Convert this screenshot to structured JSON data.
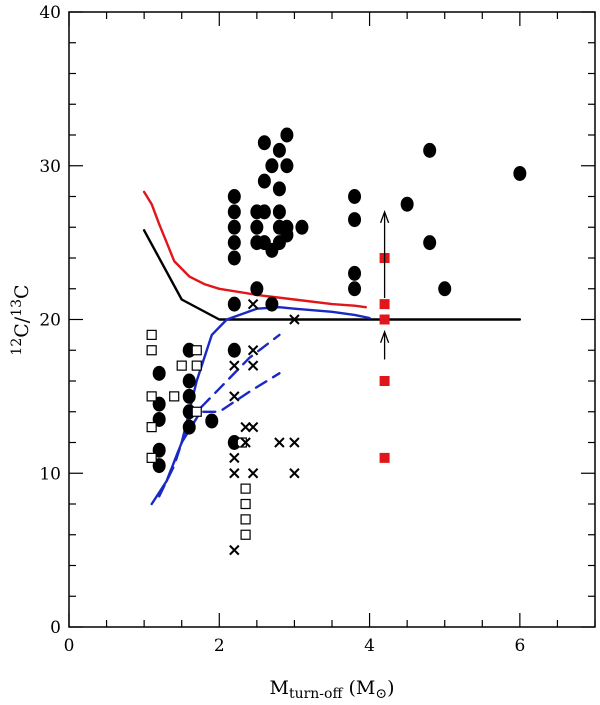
{
  "chart_data": {
    "type": "scatter",
    "title": "",
    "xlabel": {
      "main": "M",
      "sub": "turn-off",
      "unit_open": " (M",
      "unit_sub": "⊙",
      "unit_close": ")"
    },
    "ylabel": {
      "sup1": "12",
      "mid": "C/",
      "sup2": "13",
      "end": "C"
    },
    "xlim": [
      0,
      7
    ],
    "ylim": [
      0,
      40
    ],
    "x_ticks": [
      0,
      2,
      4,
      6
    ],
    "x_tick_labels": [
      "0",
      "2",
      "4",
      "6"
    ],
    "x_minor_step": 0.5,
    "y_ticks": [
      0,
      10,
      20,
      30,
      40
    ],
    "y_tick_labels": [
      "0",
      "10",
      "20",
      "30",
      "40"
    ],
    "y_minor_step": 2,
    "grid": false,
    "legend": "none",
    "colors": {
      "black": "#000000",
      "red": "#e0161b",
      "blue": "#1a29c4"
    },
    "series": [
      {
        "name": "filled circles",
        "marker": "filled-circle",
        "color": "#000000",
        "points": [
          [
            1.2,
            16.5
          ],
          [
            1.2,
            14.5
          ],
          [
            1.2,
            13.5
          ],
          [
            1.2,
            11.5
          ],
          [
            1.2,
            10.5
          ],
          [
            1.6,
            18.0
          ],
          [
            1.6,
            16.0
          ],
          [
            1.6,
            15.0
          ],
          [
            1.6,
            14.0
          ],
          [
            1.6,
            13.0
          ],
          [
            1.9,
            13.4
          ],
          [
            2.2,
            28.0
          ],
          [
            2.2,
            27.0
          ],
          [
            2.2,
            26.0
          ],
          [
            2.2,
            25.0
          ],
          [
            2.2,
            24.0
          ],
          [
            2.2,
            21.0
          ],
          [
            2.2,
            18.0
          ],
          [
            2.2,
            12.0
          ],
          [
            2.5,
            27.0
          ],
          [
            2.5,
            26.0
          ],
          [
            2.5,
            25.0
          ],
          [
            2.5,
            22.0
          ],
          [
            2.6,
            31.5
          ],
          [
            2.6,
            29.0
          ],
          [
            2.6,
            27.0
          ],
          [
            2.6,
            25.0
          ],
          [
            2.7,
            30.0
          ],
          [
            2.7,
            24.5
          ],
          [
            2.7,
            21.0
          ],
          [
            2.8,
            31.0
          ],
          [
            2.8,
            28.5
          ],
          [
            2.8,
            27.0
          ],
          [
            2.8,
            26.0
          ],
          [
            2.8,
            25.0
          ],
          [
            2.9,
            32.0
          ],
          [
            2.9,
            30.0
          ],
          [
            2.9,
            26.0
          ],
          [
            2.9,
            25.5
          ],
          [
            3.1,
            26.0
          ],
          [
            3.8,
            28.0
          ],
          [
            3.8,
            26.5
          ],
          [
            3.8,
            23.0
          ],
          [
            3.8,
            22.0
          ],
          [
            4.5,
            27.5
          ],
          [
            4.8,
            31.0
          ],
          [
            4.8,
            25.0
          ],
          [
            5.0,
            22.0
          ],
          [
            6.0,
            29.5
          ]
        ]
      },
      {
        "name": "open squares",
        "marker": "open-square",
        "color": "#000000",
        "points": [
          [
            1.1,
            19.0
          ],
          [
            1.1,
            18.0
          ],
          [
            1.1,
            15.0
          ],
          [
            1.1,
            13.0
          ],
          [
            1.1,
            11.0
          ],
          [
            1.4,
            15.0
          ],
          [
            1.5,
            17.0
          ],
          [
            1.7,
            18.0
          ],
          [
            1.7,
            17.0
          ],
          [
            1.7,
            14.0
          ],
          [
            2.3,
            12.0
          ],
          [
            2.35,
            9.0
          ],
          [
            2.35,
            8.0
          ],
          [
            2.35,
            7.0
          ],
          [
            2.35,
            6.0
          ]
        ]
      },
      {
        "name": "crosses",
        "marker": "cross",
        "color": "#000000",
        "points": [
          [
            2.45,
            21.0
          ],
          [
            3.0,
            20.0
          ],
          [
            2.45,
            18.0
          ],
          [
            2.2,
            17.0
          ],
          [
            2.45,
            17.0
          ],
          [
            2.2,
            15.0
          ],
          [
            2.35,
            13.0
          ],
          [
            2.45,
            13.0
          ],
          [
            2.2,
            12.0
          ],
          [
            2.35,
            12.0
          ],
          [
            2.8,
            12.0
          ],
          [
            3.0,
            12.0
          ],
          [
            2.2,
            11.0
          ],
          [
            2.2,
            10.0
          ],
          [
            2.45,
            10.0
          ],
          [
            3.0,
            10.0
          ],
          [
            2.2,
            5.0
          ]
        ]
      },
      {
        "name": "red squares",
        "marker": "filled-square",
        "color": "#e0161b",
        "points": [
          [
            4.2,
            24.0
          ],
          [
            4.2,
            21.0
          ],
          [
            4.2,
            20.0
          ],
          [
            4.2,
            16.0
          ],
          [
            4.2,
            11.0
          ]
        ]
      }
    ],
    "lines": [
      {
        "name": "black solid",
        "color": "#000000",
        "style": "solid",
        "points": [
          [
            1.0,
            25.8
          ],
          [
            1.5,
            21.3
          ],
          [
            2.0,
            20.0
          ],
          [
            6.0,
            20.0
          ]
        ]
      },
      {
        "name": "red solid",
        "color": "#e0161b",
        "style": "solid",
        "points": [
          [
            1.0,
            28.3
          ],
          [
            1.1,
            27.5
          ],
          [
            1.2,
            26.2
          ],
          [
            1.3,
            25.0
          ],
          [
            1.4,
            23.8
          ],
          [
            1.6,
            22.8
          ],
          [
            1.8,
            22.3
          ],
          [
            2.0,
            22.0
          ],
          [
            2.5,
            21.6
          ],
          [
            3.0,
            21.3
          ],
          [
            3.5,
            21.0
          ],
          [
            3.8,
            20.9
          ],
          [
            3.95,
            20.8
          ]
        ]
      },
      {
        "name": "blue solid",
        "color": "#1a29c4",
        "style": "solid",
        "points": [
          [
            1.1,
            8.0
          ],
          [
            1.3,
            9.5
          ],
          [
            1.5,
            12.0
          ],
          [
            1.7,
            16.0
          ],
          [
            1.9,
            19.0
          ],
          [
            2.1,
            20.0
          ],
          [
            2.5,
            20.7
          ],
          [
            2.8,
            20.8
          ],
          [
            3.0,
            20.7
          ],
          [
            3.5,
            20.5
          ],
          [
            3.8,
            20.3
          ],
          [
            4.0,
            20.1
          ]
        ]
      },
      {
        "name": "blue dashed upper",
        "color": "#1a29c4",
        "style": "dashed",
        "points": [
          [
            1.2,
            8.5
          ],
          [
            1.4,
            10.5
          ],
          [
            1.6,
            13.5
          ],
          [
            2.0,
            15.5
          ],
          [
            2.4,
            17.5
          ],
          [
            2.8,
            19.0
          ]
        ]
      },
      {
        "name": "blue dashed lower",
        "color": "#1a29c4",
        "style": "dashed",
        "points": [
          [
            1.3,
            9.5
          ],
          [
            1.5,
            12.0
          ],
          [
            1.75,
            14.0
          ],
          [
            2.0,
            14.0
          ],
          [
            2.4,
            15.3
          ],
          [
            2.8,
            16.5
          ]
        ]
      }
    ],
    "arrows": [
      {
        "name": "upper limit arrow",
        "x": 4.2,
        "from": 21.4,
        "to": 27.0,
        "color": "#000000"
      },
      {
        "name": "lower limit arrow",
        "x": 4.2,
        "from": 17.4,
        "to": 19.2,
        "color": "#000000"
      }
    ]
  }
}
